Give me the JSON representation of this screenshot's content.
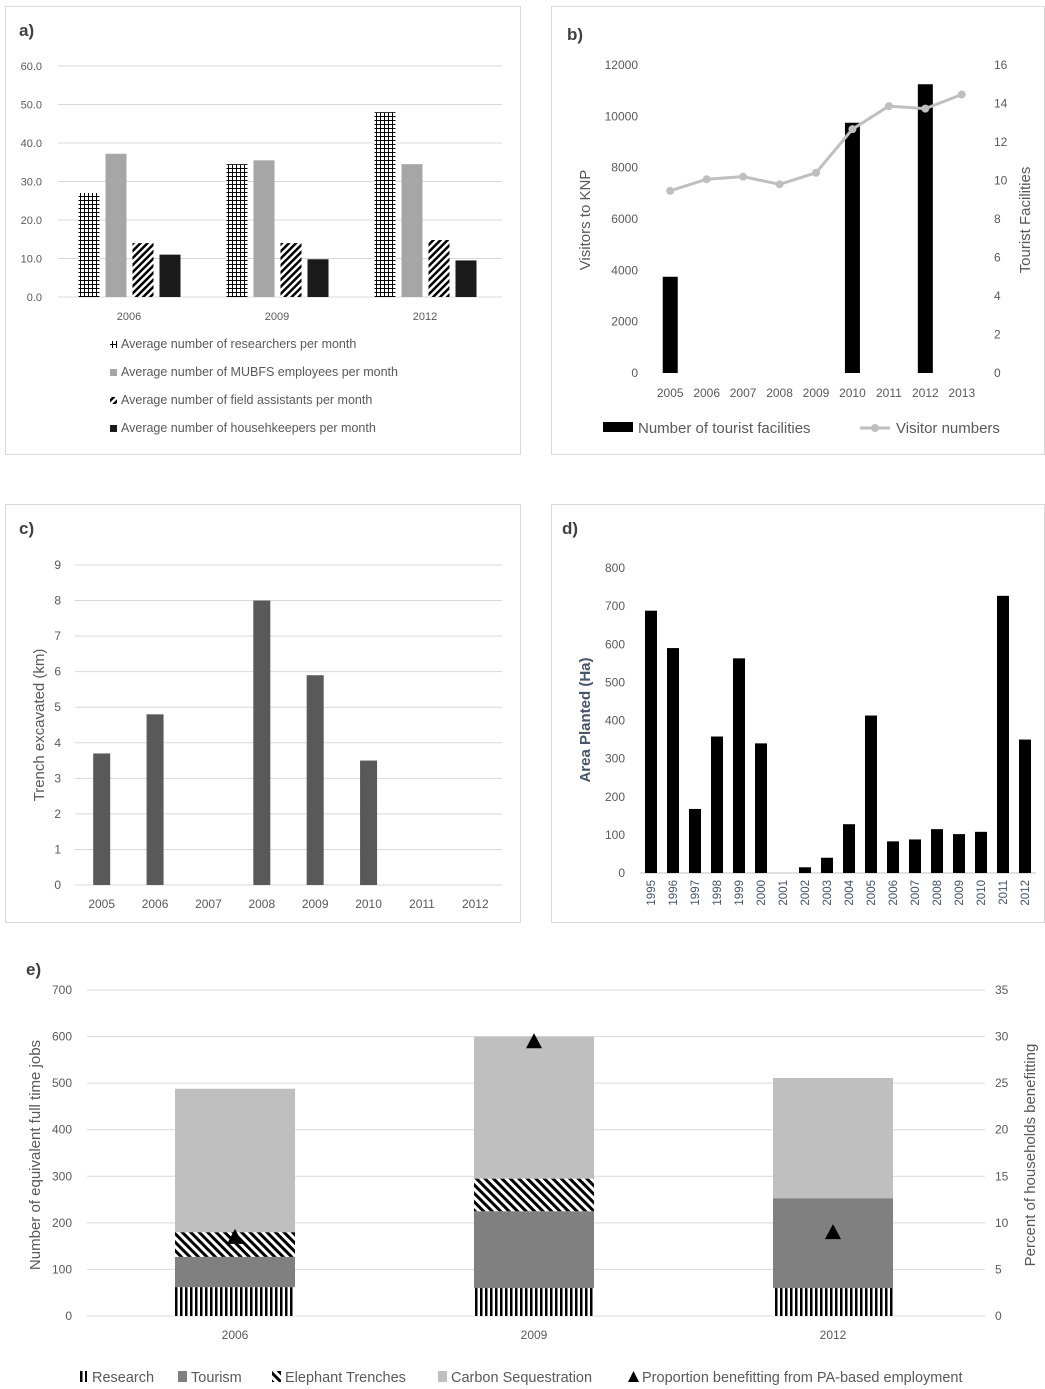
{
  "panels": {
    "a": {
      "label": "a)"
    },
    "b": {
      "label": "b)"
    },
    "c": {
      "label": "c)"
    },
    "d": {
      "label": "d)"
    },
    "e": {
      "label": "e)"
    }
  },
  "chart_data": [
    {
      "id": "a",
      "type": "bar",
      "categories": [
        "2006",
        "2009",
        "2012"
      ],
      "ylim": [
        0,
        60
      ],
      "yticks": [
        "0.0",
        "10.0",
        "20.0",
        "30.0",
        "40.0",
        "50.0",
        "60.0"
      ],
      "grid": true,
      "legend_position": "bottom",
      "series": [
        {
          "name": "Average number of researchers per month",
          "values": [
            27,
            34.5,
            48
          ],
          "pattern": "crosshatch"
        },
        {
          "name": "Average number of MUBFS employees per month",
          "values": [
            37.2,
            35.5,
            34.5
          ],
          "pattern": "lightgray"
        },
        {
          "name": "Average number of field assistants per month",
          "values": [
            14,
            14,
            14.8
          ],
          "pattern": "diagonal"
        },
        {
          "name": "Average number of househkeepers per month",
          "values": [
            11,
            9.8,
            9.5
          ],
          "pattern": "solid"
        }
      ]
    },
    {
      "id": "b",
      "type": "bar",
      "categories": [
        "2005",
        "2006",
        "2007",
        "2008",
        "2009",
        "2010",
        "2011",
        "2012",
        "2013"
      ],
      "ylabel": "Visitors to KNP",
      "ylabel_right": "Tourist Facilities",
      "ylim": [
        0,
        12000
      ],
      "ylim_right": [
        0,
        16
      ],
      "yticks": [
        "0",
        "2000",
        "4000",
        "6000",
        "8000",
        "10000",
        "12000"
      ],
      "yticks_right": [
        "0",
        "2",
        "4",
        "6",
        "8",
        "10",
        "12",
        "14",
        "16"
      ],
      "grid": false,
      "legend_position": "bottom",
      "series": [
        {
          "name": "Number of tourist facilities",
          "axis": "right",
          "values": [
            5,
            0,
            0,
            0,
            0,
            13,
            0,
            15,
            0
          ]
        },
        {
          "name": "Visitor numbers",
          "axis": "left",
          "type": "line",
          "values": [
            7100,
            7550,
            7650,
            7350,
            7800,
            9500,
            10400,
            10300,
            10850
          ]
        }
      ]
    },
    {
      "id": "c",
      "type": "bar",
      "categories": [
        "2005",
        "2006",
        "2007",
        "2008",
        "2009",
        "2010",
        "2011",
        "2012"
      ],
      "ylabel": "Trench excavated (km)",
      "ylim": [
        0,
        9
      ],
      "yticks": [
        "0",
        "1",
        "2",
        "3",
        "4",
        "5",
        "6",
        "7",
        "8",
        "9"
      ],
      "grid": true,
      "values": [
        3.7,
        4.8,
        0,
        8.0,
        5.9,
        3.5,
        0,
        0
      ]
    },
    {
      "id": "d",
      "type": "bar",
      "categories": [
        "1995",
        "1996",
        "1997",
        "1998",
        "1999",
        "2000",
        "2001",
        "2002",
        "2003",
        "2004",
        "2005",
        "2006",
        "2007",
        "2008",
        "2009",
        "2010",
        "2011",
        "2012"
      ],
      "ylabel": "Area Planted (Ha)",
      "ylim": [
        0,
        800
      ],
      "yticks": [
        "0",
        "100",
        "200",
        "300",
        "400",
        "500",
        "600",
        "700",
        "800"
      ],
      "grid": false,
      "values": [
        688,
        590,
        168,
        358,
        563,
        340,
        0,
        15,
        40,
        128,
        413,
        83,
        88,
        115,
        102,
        108,
        727,
        350
      ]
    },
    {
      "id": "e",
      "type": "bar",
      "stacked": true,
      "categories": [
        "2006",
        "2009",
        "2012"
      ],
      "ylabel": "Number of equivalent full time jobs",
      "ylabel_right": "Percent of households benefitting",
      "ylim": [
        0,
        700
      ],
      "ylim_right": [
        0,
        35
      ],
      "yticks": [
        "0",
        "100",
        "200",
        "300",
        "400",
        "500",
        "600",
        "700"
      ],
      "yticks_right": [
        "0",
        "5",
        "10",
        "15",
        "20",
        "25",
        "30",
        "35"
      ],
      "grid": true,
      "legend_position": "bottom",
      "series": [
        {
          "name": "Research",
          "values": [
            62,
            60,
            60
          ],
          "pattern": "vertical"
        },
        {
          "name": "Tourism",
          "values": [
            65,
            165,
            193
          ],
          "pattern": "darkgray"
        },
        {
          "name": "Elephant Trenches",
          "values": [
            53,
            70,
            0
          ],
          "pattern": "diagonal"
        },
        {
          "name": "Carbon Sequestration",
          "values": [
            308,
            305,
            258
          ],
          "pattern": "lightgray"
        },
        {
          "name": "Proportion benefitting from PA-based employment",
          "axis": "right",
          "type": "marker",
          "values": [
            8.5,
            29.5,
            9
          ]
        }
      ]
    }
  ]
}
